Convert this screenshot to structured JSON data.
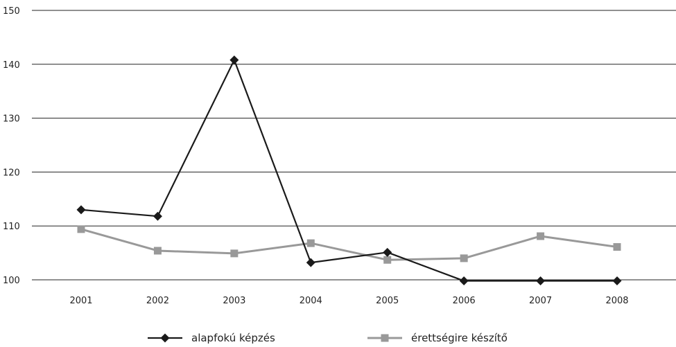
{
  "chart_data": {
    "type": "line",
    "categories": [
      "2001",
      "2002",
      "2003",
      "2004",
      "2005",
      "2006",
      "2007",
      "2008"
    ],
    "ylim": [
      100,
      150
    ],
    "yticks": [
      100,
      110,
      120,
      130,
      140,
      150
    ],
    "grid": true,
    "legend_position": "bottom",
    "series": [
      {
        "name": "alapfokú képzés",
        "values": [
          113,
          111.8,
          140.8,
          103.2,
          105.1,
          99.8,
          99.8,
          99.8
        ],
        "color": "#1a1a1a",
        "marker": "diamond"
      },
      {
        "name": "érettségire készítő",
        "values": [
          109.4,
          105.4,
          104.9,
          106.8,
          103.7,
          104.0,
          108.1,
          106.1
        ],
        "color": "#999999",
        "marker": "square"
      }
    ]
  }
}
